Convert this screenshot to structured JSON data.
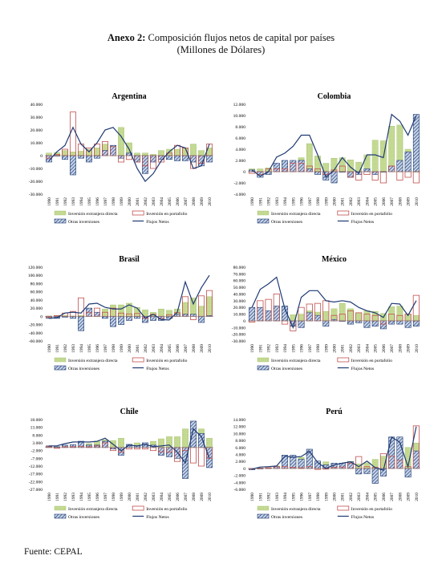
{
  "header": {
    "title_bold": "Anexo 2:",
    "title_rest": " Composición flujos netos de capital por países",
    "subtitle": "(Millones de Dólares)"
  },
  "footer": {
    "source": "Fuente: CEPAL"
  },
  "colors": {
    "ied_fill": "#c8dc96",
    "ied_stroke": "#9fbf6a",
    "port_stroke": "#c0504d",
    "otras_stroke": "#1f3a73",
    "otras_fill": "#c9d6ea",
    "line": "#1f3a73"
  },
  "legend_labels": {
    "ied": "Inversión extranjera directa",
    "portafolio": "Inversión en portafolio",
    "otras": "Otras inversiones",
    "flujos": "Flujos Netos"
  },
  "chart_data": [
    {
      "type": "bar",
      "title": "Argentina",
      "categories": [
        "1990",
        "1991",
        "1992",
        "1993",
        "1994",
        "1995",
        "1996",
        "1997",
        "1998",
        "1999",
        "2000",
        "2001",
        "2002",
        "2003",
        "2004",
        "2005",
        "2006",
        "2007",
        "2008",
        "2009",
        "2010"
      ],
      "yticks": [
        "40.000",
        "30.000",
        "20.000",
        "10.000",
        "0",
        "-10.000",
        "-20.000",
        "-30.000"
      ],
      "ylim": [
        -30,
        40
      ],
      "series": [
        {
          "name": "Inversión extranjera directa",
          "values": [
            2,
            2.4,
            4,
            3,
            3.5,
            5,
            6,
            9,
            7,
            22,
            10,
            2,
            2,
            1,
            4,
            5,
            5,
            6,
            9,
            4,
            6
          ]
        },
        {
          "name": "Inversión en portafolio",
          "values": [
            -2,
            1,
            5,
            34,
            9,
            6,
            9,
            11,
            7,
            -5,
            -3,
            -5,
            -8,
            -10,
            -5,
            2,
            8,
            6,
            -10,
            -6,
            9
          ]
        },
        {
          "name": "Otras inversiones",
          "values": [
            -5,
            0,
            -3,
            -15,
            -2,
            -5,
            -2,
            4,
            8,
            -2,
            2,
            -5,
            -14,
            -5,
            -3,
            -3,
            -4,
            -4,
            -5,
            -8,
            -5
          ]
        },
        {
          "name": "Flujos Netos",
          "values": [
            -4,
            3,
            8,
            22,
            9,
            3,
            10,
            20,
            22,
            15,
            5,
            -10,
            -20,
            -14,
            -4,
            3,
            8,
            6,
            -10,
            -8,
            9
          ]
        }
      ]
    },
    {
      "type": "bar",
      "title": "Colombia",
      "categories": [
        "1990",
        "1991",
        "1992",
        "1993",
        "1994",
        "1995",
        "1996",
        "1997",
        "1998",
        "1999",
        "2000",
        "2001",
        "2002",
        "2003",
        "2004",
        "2005",
        "2006",
        "2007",
        "2008",
        "2009",
        "2010"
      ],
      "yticks": [
        "12.000",
        "10.000",
        "8.000",
        "6.000",
        "4.000",
        "2.000",
        "0",
        "-2.000",
        "-4.000"
      ],
      "ylim": [
        -4,
        12
      ],
      "series": [
        {
          "name": "Inversión extranjera directa",
          "values": [
            0.5,
            0.5,
            0.7,
            1,
            1.5,
            1,
            2.5,
            5,
            2.8,
            1.5,
            2.4,
            2.5,
            2.1,
            1.7,
            3,
            5.6,
            5.5,
            8.1,
            8.3,
            4,
            0
          ]
        },
        {
          "name": "Inversión en portafolio",
          "values": [
            -0.3,
            -0.5,
            0.5,
            0.5,
            0.5,
            1.5,
            1.5,
            1,
            0.5,
            -0.5,
            0.3,
            1,
            -1,
            -1.5,
            -0.5,
            -1.5,
            -2,
            1,
            -1.5,
            -1,
            -2
          ]
        },
        {
          "name": "Otras inversiones",
          "values": [
            0.3,
            -1,
            -0.5,
            1.5,
            2,
            2,
            2,
            0.5,
            -0.5,
            -1.5,
            -2,
            0,
            -1,
            -0.5,
            0.5,
            -0.5,
            0,
            1,
            2,
            3.5,
            10.2
          ]
        },
        {
          "name": "Flujos Netos",
          "values": [
            0.3,
            -0.8,
            0,
            2.6,
            3.3,
            4.5,
            6.5,
            6.5,
            3,
            -1,
            0.3,
            2.5,
            0.8,
            -0.3,
            3,
            3,
            2.5,
            10.2,
            9,
            6.5,
            10
          ]
        }
      ]
    },
    {
      "type": "bar",
      "title": "Brasil",
      "categories": [
        "1990",
        "1991",
        "1992",
        "1993",
        "1994",
        "1995",
        "1996",
        "1997",
        "1998",
        "1999",
        "2000",
        "2001",
        "2002",
        "2003",
        "2004",
        "2005",
        "2006",
        "2007",
        "2008",
        "2009",
        "2010"
      ],
      "yticks": [
        "120.000",
        "100.000",
        "80.000",
        "60.000",
        "40.000",
        "20.000",
        "0",
        "-20.000",
        "-40.000",
        "-60.000"
      ],
      "ylim": [
        -60,
        120
      ],
      "series": [
        {
          "name": "Inversión extranjera directa",
          "values": [
            1,
            1,
            2,
            1,
            2,
            4,
            10,
            18,
            28,
            28,
            32,
            22,
            16,
            10,
            18,
            15,
            18,
            34,
            45,
            25,
            48
          ]
        },
        {
          "name": "Inversión en portafolio",
          "values": [
            -2,
            2,
            8,
            12,
            45,
            10,
            20,
            10,
            20,
            8,
            6,
            7,
            -5,
            5,
            -5,
            4,
            9,
            48,
            -8,
            50,
            63
          ]
        },
        {
          "name": "Otras inversiones",
          "values": [
            -5,
            -5,
            -2,
            -5,
            -35,
            20,
            10,
            -5,
            -25,
            -20,
            -10,
            -5,
            -15,
            -10,
            -10,
            -5,
            5,
            5,
            5,
            -15,
            2
          ]
        },
        {
          "name": "Flujos Netos",
          "values": [
            -5,
            -3,
            8,
            10,
            8,
            30,
            32,
            22,
            18,
            18,
            28,
            20,
            -4,
            5,
            -8,
            -9,
            10,
            84,
            30,
            70,
            100
          ]
        }
      ]
    },
    {
      "type": "bar",
      "title": "México",
      "categories": [
        "1990",
        "1991",
        "1992",
        "1993",
        "1994",
        "1995",
        "1996",
        "1997",
        "1998",
        "1999",
        "2000",
        "2001",
        "2002",
        "2003",
        "2004",
        "2005",
        "2006",
        "2007",
        "2008",
        "2009",
        "2010"
      ],
      "yticks": [
        "80.000",
        "70.000",
        "60.000",
        "50.000",
        "40.000",
        "30.000",
        "20.000",
        "10.000",
        "0",
        "-10.000",
        "-20.000",
        "-30.000"
      ],
      "ylim": [
        -30,
        80
      ],
      "series": [
        {
          "name": "Inversión extranjera directa",
          "values": [
            3,
            5,
            5,
            5,
            10,
            9,
            10,
            15,
            13,
            14,
            18,
            26,
            18,
            12,
            15,
            14,
            11,
            21,
            22,
            10,
            8
          ]
        },
        {
          "name": "Inversión en portafolio",
          "values": [
            -2,
            30,
            32,
            40,
            -5,
            -15,
            20,
            25,
            26,
            30,
            8,
            10,
            15,
            12,
            10,
            8,
            -5,
            10,
            8,
            10,
            38
          ]
        },
        {
          "name": "Otras inversiones",
          "values": [
            20,
            20,
            15,
            22,
            22,
            -8,
            -10,
            12,
            8,
            -8,
            2,
            0,
            -5,
            -3,
            -10,
            -8,
            -12,
            -5,
            -5,
            -10,
            -8
          ]
        },
        {
          "name": "Flujos Netos",
          "values": [
            20,
            47,
            55,
            65,
            18,
            -10,
            35,
            45,
            45,
            30,
            28,
            30,
            28,
            20,
            15,
            12,
            5,
            26,
            25,
            8,
            30
          ]
        }
      ]
    },
    {
      "type": "bar",
      "title": "Chile",
      "categories": [
        "1990",
        "1991",
        "1992",
        "1993",
        "1994",
        "1995",
        "1996",
        "1997",
        "1998",
        "1999",
        "2000",
        "2001",
        "2002",
        "2003",
        "2004",
        "2005",
        "2006",
        "2007",
        "2008",
        "2009",
        "2010"
      ],
      "yticks": [
        "18.000",
        "13.000",
        "8.000",
        "3.000",
        "-2.000",
        "-7.000",
        "-12.000",
        "-17.000",
        "-22.000",
        "-27.000"
      ],
      "ylim": [
        -27,
        18
      ],
      "series": [
        {
          "name": "Inversión extranjera directa",
          "values": [
            0.5,
            0.5,
            0.8,
            1,
            2.5,
            2.5,
            4,
            5,
            4.5,
            6,
            0.5,
            3,
            1.7,
            4,
            5.6,
            7,
            7,
            12,
            15,
            12,
            6
          ]
        },
        {
          "name": "Inversión en portafolio",
          "values": [
            0.5,
            -0.5,
            0.5,
            0.5,
            0.8,
            0.5,
            1,
            3,
            -2,
            -3,
            -1,
            -1,
            -1,
            -2,
            -3,
            -3,
            -9,
            -2,
            -10,
            -12,
            -7
          ]
        },
        {
          "name": "Otras inversiones",
          "values": [
            1,
            0.5,
            1.5,
            1.8,
            4,
            1.5,
            1.5,
            4,
            -1,
            -5,
            2,
            1,
            3,
            1.5,
            -5,
            -6,
            -7,
            -20,
            17,
            9,
            -13
          ]
        },
        {
          "name": "Flujos Netos",
          "values": [
            1,
            1.1,
            2.5,
            3.5,
            3.6,
            3.5,
            4,
            6,
            2,
            -2,
            1.5,
            1,
            2,
            0.5,
            1,
            1.6,
            -3,
            -10,
            12,
            7,
            -7
          ]
        }
      ]
    },
    {
      "type": "bar",
      "title": "Perú",
      "categories": [
        "1990",
        "1991",
        "1992",
        "1993",
        "1994",
        "1995",
        "1996",
        "1997",
        "1998",
        "1999",
        "2000",
        "2001",
        "2002",
        "2003",
        "2004",
        "2005",
        "2006",
        "2007",
        "2008",
        "2009",
        "2010"
      ],
      "yticks": [
        "14.000",
        "12.000",
        "10.000",
        "8.000",
        "6.000",
        "4.000",
        "2.000",
        "0",
        "-2.000",
        "-4.000",
        "-6.000"
      ],
      "ylim": [
        -6,
        14
      ],
      "series": [
        {
          "name": "Inversión extranjera directa",
          "values": [
            0,
            0,
            0.2,
            0.7,
            3,
            2.5,
            3.2,
            2,
            1.6,
            1.9,
            0.8,
            1,
            2,
            1.3,
            1.6,
            2.6,
            3.5,
            5.5,
            6.9,
            6,
            7.3
          ]
        },
        {
          "name": "Inversión en portafolio",
          "values": [
            0,
            0.1,
            0.2,
            0.5,
            0.5,
            0.3,
            0.2,
            0.5,
            -0.3,
            -0.2,
            0.3,
            0.4,
            1.5,
            3.4,
            0.5,
            0.3,
            4.2,
            3.5,
            2.3,
            0.5,
            12.2
          ]
        },
        {
          "name": "Otras inversiones",
          "values": [
            -0.4,
            -0.1,
            0.1,
            0.5,
            3.8,
            3.8,
            2.6,
            5.5,
            2.1,
            1,
            1.5,
            1.5,
            1.9,
            -1.6,
            -1.5,
            -4.3,
            -2.2,
            9,
            9,
            -2.5,
            5
          ]
        },
        {
          "name": "Flujos Netos",
          "values": [
            -0.2,
            0.4,
            0.5,
            0.7,
            3.5,
            3.2,
            3.4,
            4.9,
            1.7,
            0,
            1,
            1.5,
            1.9,
            0.5,
            2.1,
            0.2,
            -0.5,
            9,
            7.5,
            0.5,
            12
          ]
        }
      ]
    }
  ]
}
